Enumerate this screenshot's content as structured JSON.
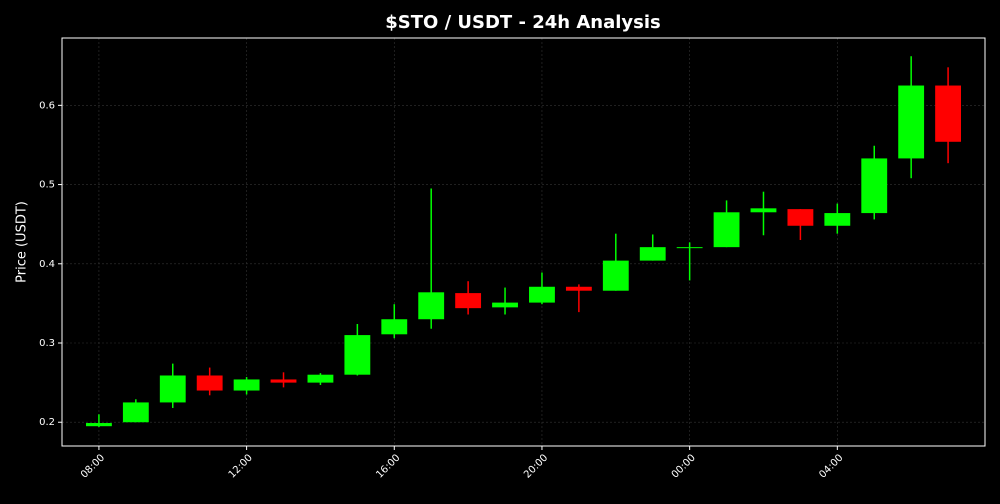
{
  "chart_data": {
    "type": "candlestick",
    "title": "$STO / USDT - 24h Analysis",
    "y_label": "Price (USDT)",
    "categories": [
      "08:00",
      null,
      null,
      null,
      "12:00",
      null,
      null,
      null,
      "16:00",
      null,
      null,
      null,
      "20:00",
      null,
      null,
      null,
      "00:00",
      null,
      null,
      null,
      "04:00",
      null,
      null,
      null
    ],
    "open": [
      0.195,
      0.2,
      0.225,
      0.259,
      0.24,
      0.254,
      0.25,
      0.26,
      0.311,
      0.33,
      0.363,
      0.345,
      0.351,
      0.371,
      0.366,
      0.404,
      0.42,
      0.421,
      0.465,
      0.469,
      0.448,
      0.464,
      0.533,
      0.625
    ],
    "high": [
      0.21,
      0.229,
      0.274,
      0.269,
      0.257,
      0.263,
      0.262,
      0.324,
      0.349,
      0.495,
      0.378,
      0.37,
      0.389,
      0.374,
      0.438,
      0.437,
      0.427,
      0.48,
      0.491,
      0.469,
      0.476,
      0.549,
      0.662,
      0.648
    ],
    "low": [
      0.194,
      0.2,
      0.218,
      0.234,
      0.235,
      0.244,
      0.247,
      0.259,
      0.306,
      0.318,
      0.336,
      0.336,
      0.349,
      0.339,
      0.366,
      0.404,
      0.379,
      0.421,
      0.436,
      0.43,
      0.438,
      0.456,
      0.508,
      0.527
    ],
    "close": [
      0.199,
      0.225,
      0.259,
      0.24,
      0.254,
      0.25,
      0.26,
      0.31,
      0.33,
      0.364,
      0.344,
      0.351,
      0.371,
      0.366,
      0.404,
      0.421,
      0.421,
      0.465,
      0.47,
      0.448,
      0.464,
      0.533,
      0.625,
      0.554
    ],
    "up_color": "#00ff00",
    "down_color": "#ff0000",
    "ylim": [
      0.17,
      0.685
    ],
    "yticks": [
      0.2,
      0.3,
      0.4,
      0.5,
      0.6
    ],
    "grid": true
  }
}
